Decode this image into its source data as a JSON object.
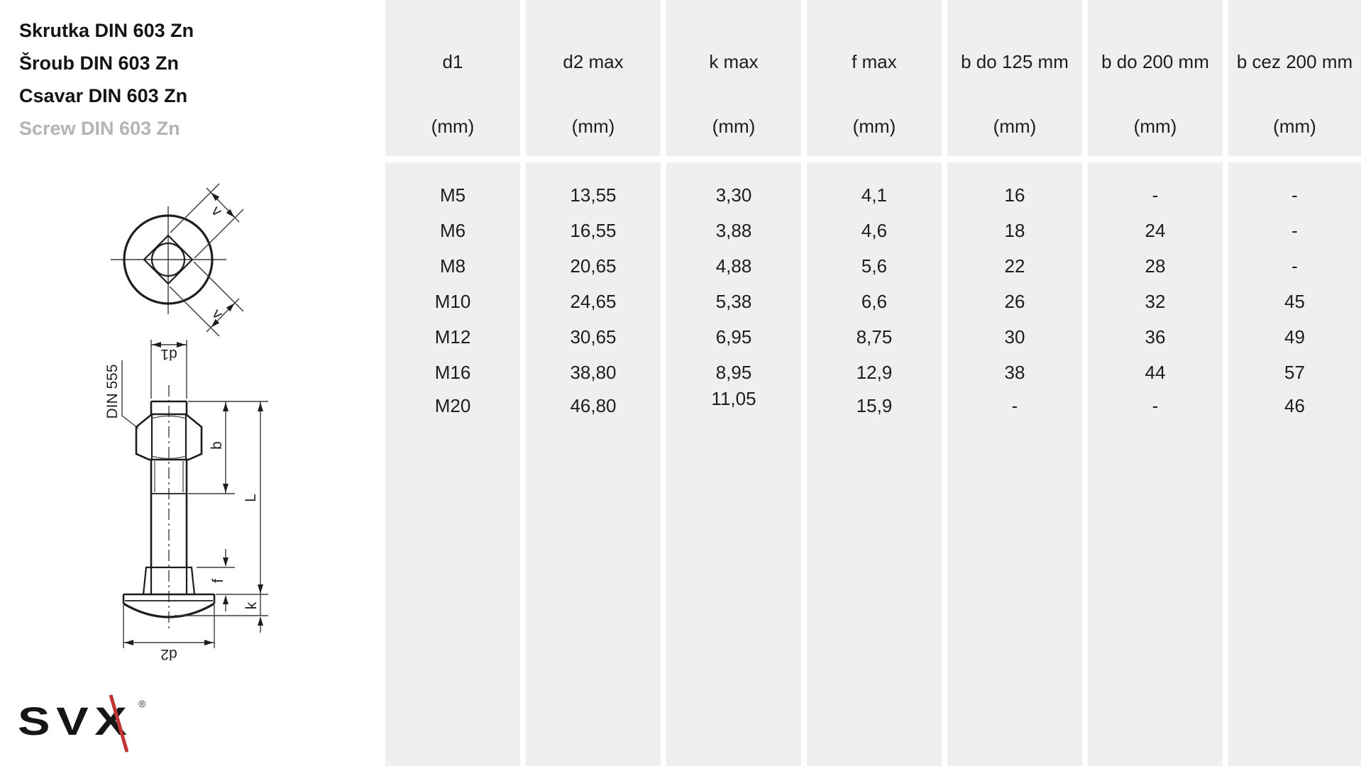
{
  "titles": [
    {
      "text": "Skrutka DIN 603 Zn",
      "muted": false
    },
    {
      "text": "Šroub DIN 603 Zn",
      "muted": false
    },
    {
      "text": "Csavar DIN 603 Zn",
      "muted": false
    },
    {
      "text": "Screw DIN 603 Zn",
      "muted": true
    }
  ],
  "drawing": {
    "labels": {
      "v": "v",
      "d1": "d1",
      "din": "DIN 555",
      "b": "b",
      "L": "L",
      "f": "f",
      "k": "k",
      "d2": "d2"
    }
  },
  "logo": {
    "text": "SVX",
    "registered": "®"
  },
  "table": {
    "columns": [
      {
        "header": "d1",
        "unit": "(mm)",
        "values": [
          "M5",
          "M6",
          "M8",
          "M10",
          "M12",
          "M16",
          "M20"
        ]
      },
      {
        "header": "d2 max",
        "unit": "(mm)",
        "values": [
          "13,55",
          "16,55",
          "20,65",
          "24,65",
          "30,65",
          "38,80",
          "46,80"
        ]
      },
      {
        "header": "k max",
        "unit": "(mm)",
        "values": [
          "3,30",
          "3,88",
          "4,88",
          "5,38",
          "6,95",
          "8,95",
          "11,05"
        ]
      },
      {
        "header": "f max",
        "unit": "(mm)",
        "values": [
          "4,1",
          "4,6",
          "5,6",
          "6,6",
          "8,75",
          "12,9",
          "15,9"
        ]
      },
      {
        "header": "b do 125 mm",
        "unit": "(mm)",
        "values": [
          "16",
          "18",
          "22",
          "26",
          "30",
          "38",
          "-"
        ]
      },
      {
        "header": "b do 200 mm",
        "unit": "(mm)",
        "values": [
          "-",
          "24",
          "28",
          "32",
          "36",
          "44",
          "-"
        ]
      },
      {
        "header": "b cez 200 mm",
        "unit": "(mm)",
        "values": [
          "-",
          "-",
          "-",
          "45",
          "49",
          "57",
          "46"
        ]
      }
    ]
  },
  "colors": {
    "column_bg": "#efefef",
    "page_bg": "#ffffff",
    "text": "#1d1d1d",
    "muted_title": "#b4b4b4",
    "logo_red": "#c23535"
  }
}
